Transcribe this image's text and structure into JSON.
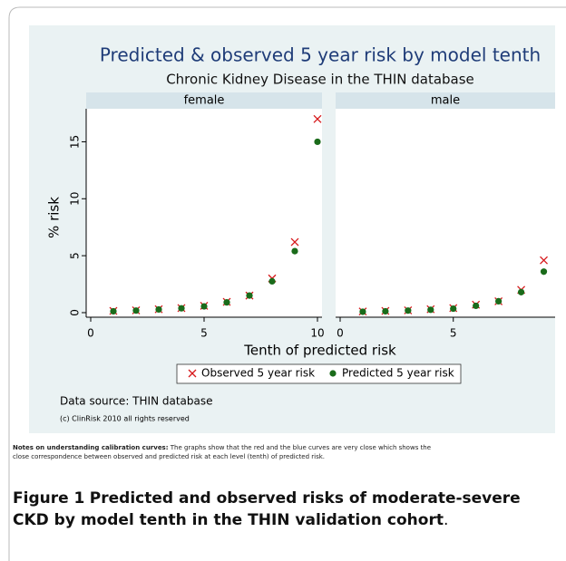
{
  "figure": {
    "title": "Predicted & observed 5 year risk by model tenth",
    "subtitle": "Chronic Kidney Disease in the THIN database",
    "xlabel": "Tenth of predicted risk",
    "ylabel": "% risk",
    "source": "Data source: THIN database",
    "copyright": "(c) ClinRisk 2010 all rights reserved"
  },
  "chart_data": [
    {
      "type": "scatter",
      "panel": "female",
      "x": [
        1,
        2,
        3,
        4,
        5,
        6,
        7,
        8,
        9,
        10
      ],
      "xlim": [
        -0.2,
        10.2
      ],
      "xticks": [
        0,
        5,
        10
      ],
      "ylim": [
        -0.4,
        17.9
      ],
      "yticks": [
        0,
        5,
        10,
        15
      ],
      "series": [
        {
          "name": "Observed 5 year risk",
          "color": "#d7191c",
          "marker": "x",
          "values": [
            0.15,
            0.2,
            0.3,
            0.4,
            0.6,
            0.95,
            1.5,
            3.0,
            6.2,
            17.0
          ]
        },
        {
          "name": "Predicted 5 year risk",
          "color": "#1a6b1a",
          "marker": "circle",
          "values": [
            0.12,
            0.18,
            0.28,
            0.38,
            0.55,
            0.9,
            1.5,
            2.75,
            5.4,
            15.0
          ]
        }
      ]
    },
    {
      "type": "scatter",
      "panel": "male",
      "x": [
        1,
        2,
        3,
        4,
        5,
        6,
        7,
        8,
        9
      ],
      "xlim": [
        -0.2,
        9.5
      ],
      "xticks": [
        0,
        5
      ],
      "ylim": [
        -0.4,
        17.9
      ],
      "yticks": [
        0,
        5,
        10,
        15
      ],
      "series": [
        {
          "name": "Observed 5 year risk",
          "color": "#d7191c",
          "marker": "x",
          "values": [
            0.1,
            0.15,
            0.2,
            0.3,
            0.4,
            0.7,
            1.0,
            2.0,
            4.6
          ]
        },
        {
          "name": "Predicted 5 year risk",
          "color": "#1a6b1a",
          "marker": "circle",
          "values": [
            0.08,
            0.12,
            0.18,
            0.25,
            0.35,
            0.6,
            1.0,
            1.8,
            3.6
          ]
        }
      ]
    }
  ],
  "notes": {
    "label": "Notes on understanding calibration curves:",
    "text": "The graphs show that the red and the blue curves are very close which shows the close correspondence between observed and predicted risk at each level (tenth) of predicted risk."
  },
  "caption": {
    "label": "Figure 1",
    "text": "Predicted and observed risks of moderate-severe CKD by model tenth in the THIN validation cohort",
    "end": "."
  }
}
